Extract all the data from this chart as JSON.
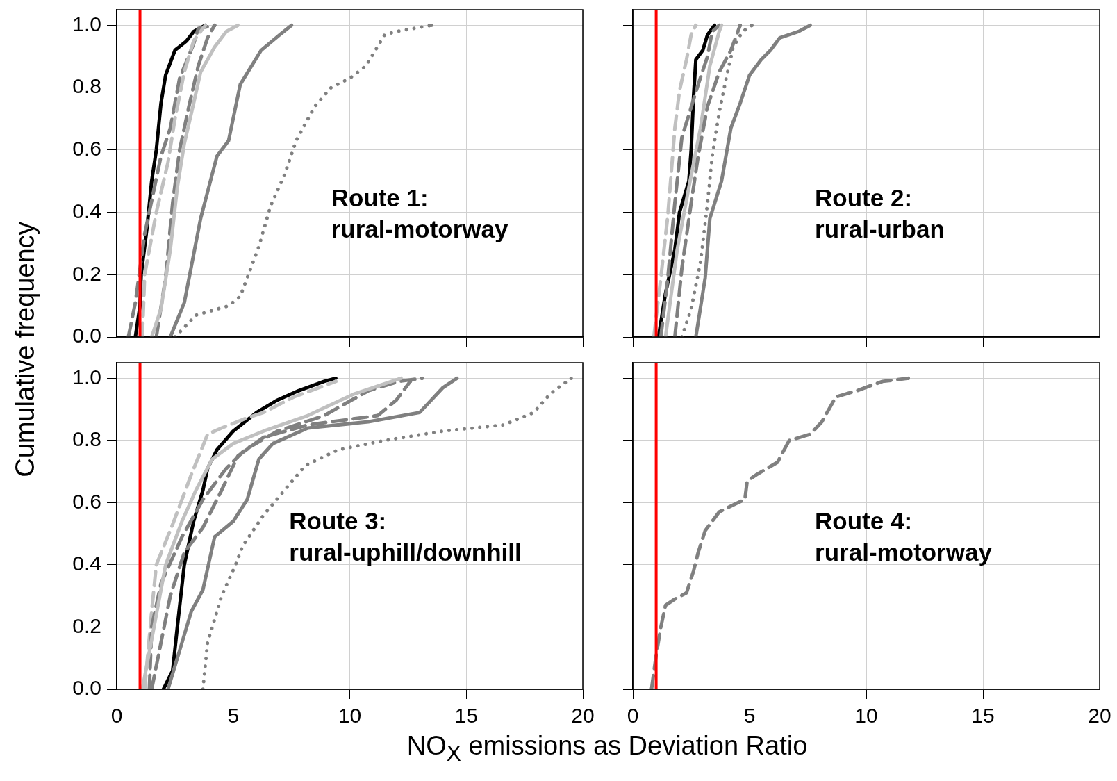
{
  "chart_data": [
    {
      "type": "line",
      "ylabel": "Cumulative frequency",
      "annotations": [
        "Route 1:\nrural-motorway"
      ],
      "xlim": [
        0,
        20
      ],
      "xticks": [
        0,
        5,
        10,
        15,
        20
      ],
      "ylim": [
        0,
        1.05
      ],
      "yticks": [
        {
          "value": 0,
          "label": "0.0"
        },
        {
          "value": 0.2,
          "label": "0.2"
        },
        {
          "value": 0.4,
          "label": "0.4"
        },
        {
          "value": 0.6,
          "label": "0.6"
        },
        {
          "value": 0.8,
          "label": "0.8"
        },
        {
          "value": 1,
          "label": "1.0"
        }
      ],
      "grid": true,
      "tick_labels": "y",
      "ref_lines": [
        {
          "axis": "x",
          "value": 1,
          "color": "#ff0000"
        }
      ],
      "series": [
        {
          "color": "#808080",
          "line_style": "dotted",
          "x": [
            2.5,
            3.4,
            4.8,
            5.3,
            6.1,
            6.6,
            7.2,
            7.7,
            8.5,
            9.2,
            10,
            10.7,
            11.5,
            12,
            13.5
          ],
          "values": [
            0,
            0.07,
            0.1,
            0.13,
            0.29,
            0.42,
            0.52,
            0.63,
            0.74,
            0.8,
            0.83,
            0.87,
            0.97,
            0.98,
            1
          ]
        },
        {
          "color": "#808080",
          "line_style": "solid",
          "x": [
            2.3,
            2.9,
            3.6,
            4.3,
            4.8,
            5.3,
            6.2,
            7,
            7.5
          ],
          "values": [
            0,
            0.11,
            0.38,
            0.58,
            0.63,
            0.81,
            0.92,
            0.97,
            1
          ]
        },
        {
          "color": "#c0c0c0",
          "line_style": "solid",
          "x": [
            1.5,
            1.9,
            2.3,
            2.6,
            2.9,
            3.3,
            3.6,
            4.2,
            4.7,
            5.2
          ],
          "values": [
            0,
            0.09,
            0.28,
            0.48,
            0.62,
            0.75,
            0.85,
            0.93,
            0.98,
            1
          ]
        },
        {
          "color": "#808080",
          "line_style": "dashed",
          "x": [
            1.7,
            2.1,
            2.4,
            2.7,
            3.1,
            3.5,
            3.9,
            4.2
          ],
          "values": [
            0,
            0.19,
            0.43,
            0.6,
            0.74,
            0.87,
            0.96,
            1
          ]
        },
        {
          "color": "#c0c0c0",
          "line_style": "dashed",
          "x": [
            1.1,
            1.2,
            1.7,
            2.2,
            2.5,
            2.9,
            3.3,
            3.8
          ],
          "values": [
            0,
            0.2,
            0.4,
            0.56,
            0.7,
            0.85,
            0.95,
            1
          ]
        },
        {
          "color": "#808080",
          "line_style": "dashed",
          "x": [
            0.5,
            0.8,
            1.2,
            1.9,
            2.3,
            2.7,
            3.3,
            3.5,
            4.2
          ],
          "values": [
            0,
            0.11,
            0.33,
            0.58,
            0.67,
            0.83,
            0.94,
            0.99,
            1
          ]
        },
        {
          "color": "#000000",
          "line_style": "solid",
          "x": [
            0.8,
            1,
            1.05,
            1.3,
            1.5,
            1.7,
            1.9,
            2.1,
            2.5,
            3,
            3.3,
            3.8
          ],
          "values": [
            0,
            0.1,
            0.2,
            0.35,
            0.5,
            0.6,
            0.75,
            0.84,
            0.92,
            0.95,
            0.98,
            1
          ]
        }
      ]
    },
    {
      "type": "line",
      "annotations": [
        "Route 2:\nrural-urban"
      ],
      "xlim": [
        0,
        20
      ],
      "xticks": [
        0,
        5,
        10,
        15,
        20
      ],
      "ylim": [
        0,
        1.05
      ],
      "yticks": [
        0,
        0.2,
        0.4,
        0.6,
        0.8,
        1
      ],
      "grid": true,
      "tick_labels": false,
      "ref_lines": [
        {
          "axis": "x",
          "value": 1,
          "color": "#ff0000"
        }
      ],
      "series": [
        {
          "color": "#808080",
          "line_style": "solid",
          "x": [
            2.7,
            3.1,
            3.3,
            3.8,
            4.2,
            4.6,
            5,
            5.5,
            5.9,
            6.3,
            7.1,
            7.6
          ],
          "values": [
            0,
            0.19,
            0.38,
            0.5,
            0.67,
            0.75,
            0.84,
            0.89,
            0.92,
            0.96,
            0.98,
            1
          ]
        },
        {
          "color": "#808080",
          "line_style": "dotted",
          "x": [
            2.1,
            2.5,
            2.9,
            3.2,
            3.4,
            3.7,
            4,
            4.3,
            4.7,
            5.1
          ],
          "values": [
            0,
            0.09,
            0.24,
            0.43,
            0.58,
            0.72,
            0.83,
            0.93,
            0.98,
            1
          ]
        },
        {
          "color": "#808080",
          "line_style": "dashed",
          "x": [
            1.8,
            2.1,
            2.5,
            2.8,
            3.2,
            3.7,
            4.2,
            4.6
          ],
          "values": [
            0,
            0.22,
            0.43,
            0.58,
            0.74,
            0.85,
            0.92,
            1
          ]
        },
        {
          "color": "#c0c0c0",
          "line_style": "solid",
          "x": [
            1.4,
            1.9,
            2.4,
            2.9,
            3.3,
            3.7,
            3.8
          ],
          "values": [
            0,
            0.28,
            0.48,
            0.67,
            0.87,
            0.98,
            1
          ]
        },
        {
          "color": "#808080",
          "line_style": "dashed",
          "x": [
            1.2,
            1.5,
            1.8,
            2.1,
            2.8,
            3.2,
            3.4,
            3.7
          ],
          "values": [
            0,
            0.19,
            0.43,
            0.64,
            0.81,
            0.9,
            0.98,
            1
          ]
        },
        {
          "color": "#c0c0c0",
          "line_style": "dashed",
          "x": [
            0.9,
            1.2,
            1.5,
            1.8,
            2,
            2.3,
            2.5,
            2.7
          ],
          "values": [
            0,
            0.19,
            0.39,
            0.67,
            0.79,
            0.89,
            0.97,
            1
          ]
        },
        {
          "color": "#000000",
          "line_style": "solid",
          "x": [
            1.1,
            1.4,
            1.8,
            2,
            2.4,
            2.5,
            2.6,
            2.7,
            3,
            3.2,
            3.5
          ],
          "values": [
            0,
            0.14,
            0.28,
            0.4,
            0.5,
            0.6,
            0.77,
            0.89,
            0.92,
            0.97,
            1
          ]
        }
      ]
    },
    {
      "type": "line",
      "xlabel": "NO$_{X}$ emissions as Deviation Ratio",
      "annotations": [
        "Route 3:\nrural-uphill/downhill"
      ],
      "xlim": [
        0,
        20
      ],
      "xticks": [
        0,
        5,
        10,
        15,
        20
      ],
      "ylim": [
        0,
        1.05
      ],
      "yticks": [
        {
          "value": 0,
          "label": "0.0"
        },
        {
          "value": 0.2,
          "label": "0.2"
        },
        {
          "value": 0.4,
          "label": "0.4"
        },
        {
          "value": 0.6,
          "label": "0.6"
        },
        {
          "value": 0.8,
          "label": "0.8"
        },
        {
          "value": 1,
          "label": "1.0"
        }
      ],
      "grid": true,
      "ref_lines": [
        {
          "axis": "x",
          "value": 1,
          "color": "#ff0000"
        }
      ],
      "series": [
        {
          "color": "#808080",
          "line_style": "dotted",
          "x": [
            3.7,
            3.9,
            4.5,
            5.1,
            5.4,
            6.3,
            7.2,
            8.1,
            9.5,
            11.5,
            14,
            16.6,
            17.9,
            18.6,
            19.5
          ],
          "values": [
            0,
            0.15,
            0.3,
            0.4,
            0.46,
            0.56,
            0.64,
            0.72,
            0.77,
            0.8,
            0.83,
            0.85,
            0.89,
            0.95,
            1
          ]
        },
        {
          "color": "#808080",
          "line_style": "solid",
          "x": [
            2.2,
            2.6,
            3.2,
            3.7,
            4.2,
            5,
            5.6,
            6.1,
            6.7,
            8.2,
            10.8,
            13,
            14,
            14.6
          ],
          "values": [
            0,
            0.1,
            0.25,
            0.32,
            0.49,
            0.54,
            0.61,
            0.74,
            0.79,
            0.84,
            0.86,
            0.89,
            0.97,
            1
          ]
        },
        {
          "color": "#808080",
          "line_style": "dashed",
          "x": [
            1.5,
            1.9,
            2.3,
            2.9,
            3.7,
            4.5,
            5.2,
            6.3,
            8.2,
            11.2,
            12,
            12.6
          ],
          "values": [
            0,
            0.15,
            0.3,
            0.44,
            0.52,
            0.64,
            0.75,
            0.81,
            0.85,
            0.88,
            0.93,
            0.99
          ]
        },
        {
          "color": "#c0c0c0",
          "line_style": "solid",
          "x": [
            1.1,
            1.6,
            2.1,
            2.8,
            3.4,
            4.1,
            5,
            6.3,
            8.2,
            10.2,
            12.2
          ],
          "values": [
            0,
            0.2,
            0.4,
            0.54,
            0.64,
            0.74,
            0.79,
            0.83,
            0.88,
            0.95,
            1
          ]
        },
        {
          "color": "#808080",
          "line_style": "dashed",
          "x": [
            1.4,
            1.5,
            1.9,
            2.8,
            3.7,
            4.7,
            5.5,
            6.9,
            8.9,
            10.8,
            12.1,
            13.1
          ],
          "values": [
            0,
            0.2,
            0.34,
            0.49,
            0.61,
            0.71,
            0.77,
            0.83,
            0.88,
            0.96,
            0.99,
            1
          ]
        },
        {
          "color": "#c0c0c0",
          "line_style": "dashed",
          "x": [
            1.2,
            1.5,
            1.7,
            2.4,
            3.2,
            3.9,
            4.5,
            5.5,
            6.3,
            7.6,
            9.4
          ],
          "values": [
            0,
            0.25,
            0.4,
            0.53,
            0.69,
            0.82,
            0.84,
            0.87,
            0.89,
            0.94,
            0.99
          ]
        },
        {
          "color": "#000000",
          "line_style": "solid",
          "x": [
            2,
            2.4,
            2.6,
            2.9,
            3.3,
            3.7,
            3.9,
            4.3,
            5,
            6,
            6.9,
            7.8,
            8.9,
            9.4
          ],
          "values": [
            0,
            0.06,
            0.2,
            0.4,
            0.54,
            0.64,
            0.71,
            0.77,
            0.83,
            0.89,
            0.93,
            0.96,
            0.99,
            1
          ]
        }
      ]
    },
    {
      "type": "line",
      "annotations": [
        "Route 4:\nrural-motorway"
      ],
      "xlim": [
        0,
        20
      ],
      "xticks": [
        0,
        5,
        10,
        15,
        20
      ],
      "ylim": [
        0,
        1.05
      ],
      "yticks": [
        0,
        0.2,
        0.4,
        0.6,
        0.8,
        1
      ],
      "grid": true,
      "tick_labels": "x",
      "ref_lines": [
        {
          "axis": "x",
          "value": 1,
          "color": "#ff0000"
        }
      ],
      "series": [
        {
          "color": "#808080",
          "line_style": "dashed",
          "x": [
            0.8,
            1,
            1.2,
            1.4,
            1.8,
            2.3,
            2.6,
            2.8,
            3.1,
            3.7,
            4.5,
            4.8,
            4.9,
            5.3,
            6.2,
            6.7,
            7.6,
            8.1,
            8.7,
            9.6,
            10.7,
            11.8
          ],
          "values": [
            0,
            0.11,
            0.2,
            0.27,
            0.29,
            0.31,
            0.38,
            0.44,
            0.51,
            0.57,
            0.6,
            0.61,
            0.67,
            0.69,
            0.73,
            0.8,
            0.82,
            0.86,
            0.94,
            0.96,
            0.99,
            1
          ]
        }
      ]
    }
  ]
}
